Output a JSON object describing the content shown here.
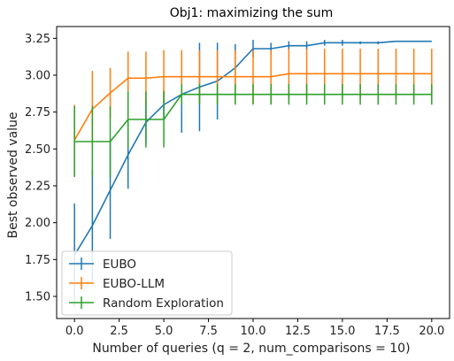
{
  "chart_data": {
    "type": "line",
    "title": "Obj1: maximizing the sum",
    "xlabel": "Number of queries (q = 2, num_comparisons = 10)",
    "ylabel": "Best observed value",
    "xlim": [
      -1,
      21
    ],
    "ylim": [
      1.35,
      3.33
    ],
    "xticks": [
      0,
      2.5,
      5,
      7.5,
      10,
      12.5,
      15,
      17.5,
      20
    ],
    "xtick_labels": [
      "0.0",
      "2.5",
      "5.0",
      "7.5",
      "10.0",
      "12.5",
      "15.0",
      "17.5",
      "20.0"
    ],
    "yticks": [
      1.5,
      1.75,
      2.0,
      2.25,
      2.5,
      2.75,
      3.0,
      3.25
    ],
    "ytick_labels": [
      "1.50",
      "1.75",
      "2.00",
      "2.25",
      "2.50",
      "2.75",
      "3.00",
      "3.25"
    ],
    "grid": false,
    "legend_position": "bottom-left",
    "x": [
      0,
      1,
      2,
      3,
      4,
      5,
      6,
      7,
      8,
      9,
      10,
      11,
      12,
      13,
      14,
      15,
      16,
      17,
      18,
      19,
      20
    ],
    "series": [
      {
        "name": "EUBO",
        "color": "#1f77b4",
        "values": [
          1.78,
          1.98,
          2.22,
          2.46,
          2.68,
          2.8,
          2.87,
          2.92,
          2.96,
          3.05,
          3.18,
          3.18,
          3.2,
          3.2,
          3.22,
          3.22,
          3.22,
          3.22,
          3.23,
          3.23,
          3.23
        ],
        "err": [
          0.35,
          0.38,
          0.33,
          0.23,
          0.14,
          0.1,
          0.26,
          0.3,
          0.26,
          0.16,
          0.06,
          0.04,
          0.03,
          0.03,
          0.02,
          0.02,
          0.01,
          0.01,
          0.0,
          0.0,
          0.0
        ]
      },
      {
        "name": "EUBO-LLM",
        "color": "#ff7f0e",
        "values": [
          2.56,
          2.77,
          2.88,
          2.98,
          2.98,
          2.99,
          2.99,
          2.99,
          2.99,
          2.99,
          2.99,
          2.99,
          3.01,
          3.01,
          3.01,
          3.01,
          3.01,
          3.01,
          3.01,
          3.01,
          3.01
        ],
        "err": [
          0.24,
          0.26,
          0.17,
          0.18,
          0.18,
          0.18,
          0.18,
          0.18,
          0.18,
          0.18,
          0.18,
          0.18,
          0.17,
          0.17,
          0.17,
          0.17,
          0.17,
          0.17,
          0.17,
          0.17,
          0.17
        ]
      },
      {
        "name": "Random Exploration",
        "color": "#2ca02c",
        "values": [
          2.55,
          2.55,
          2.55,
          2.7,
          2.7,
          2.7,
          2.87,
          2.87,
          2.87,
          2.87,
          2.87,
          2.87,
          2.87,
          2.87,
          2.87,
          2.87,
          2.87,
          2.87,
          2.87,
          2.87,
          2.87
        ],
        "err": [
          0.24,
          0.24,
          0.24,
          0.19,
          0.19,
          0.19,
          0.07,
          0.07,
          0.07,
          0.07,
          0.07,
          0.07,
          0.07,
          0.07,
          0.07,
          0.07,
          0.07,
          0.07,
          0.07,
          0.07,
          0.07
        ]
      }
    ]
  }
}
